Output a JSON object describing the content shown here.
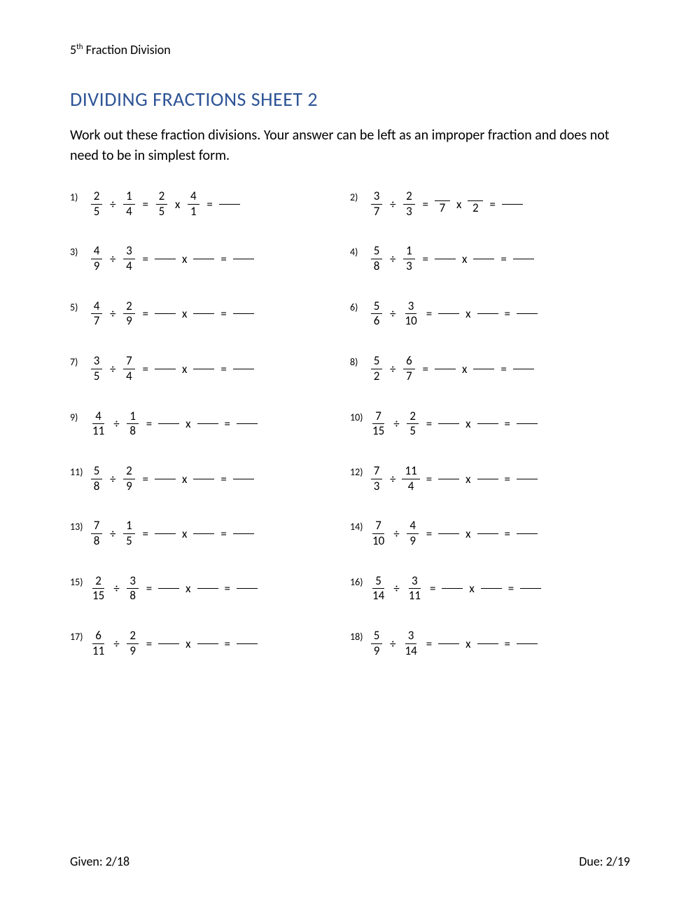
{
  "header": "5th Fraction Division",
  "header_sup": "th",
  "header_prefix": "5",
  "header_suffix": " Fraction Division",
  "title": "DIVIDING FRACTIONS SHEET 2",
  "instructions": "Work out these fraction divisions. Your answer can be left as an improper fraction and does not need to be in simplest form.",
  "footer_left": "Given: 2/18",
  "footer_right": "Due: 2/19",
  "problems": [
    {
      "n": "1)",
      "a": [
        "2",
        "5"
      ],
      "b": [
        "1",
        "4"
      ],
      "step": {
        "type": "filled",
        "c": [
          "2",
          "5"
        ],
        "d": [
          "4",
          "1"
        ]
      }
    },
    {
      "n": "2)",
      "a": [
        "3",
        "7"
      ],
      "b": [
        "2",
        "3"
      ],
      "step": {
        "type": "partial",
        "c_bot": "7",
        "d_bot": "2"
      }
    },
    {
      "n": "3)",
      "a": [
        "4",
        "9"
      ],
      "b": [
        "3",
        "4"
      ],
      "step": {
        "type": "blank"
      }
    },
    {
      "n": "4)",
      "a": [
        "5",
        "8"
      ],
      "b": [
        "1",
        "3"
      ],
      "step": {
        "type": "blank"
      }
    },
    {
      "n": "5)",
      "a": [
        "4",
        "7"
      ],
      "b": [
        "2",
        "9"
      ],
      "step": {
        "type": "blank"
      }
    },
    {
      "n": "6)",
      "a": [
        "5",
        "6"
      ],
      "b": [
        "3",
        "10"
      ],
      "step": {
        "type": "blank"
      }
    },
    {
      "n": "7)",
      "a": [
        "3",
        "5"
      ],
      "b": [
        "7",
        "4"
      ],
      "step": {
        "type": "blank"
      }
    },
    {
      "n": "8)",
      "a": [
        "5",
        "2"
      ],
      "b": [
        "6",
        "7"
      ],
      "step": {
        "type": "blank"
      }
    },
    {
      "n": "9)",
      "a": [
        "4",
        "11"
      ],
      "b": [
        "1",
        "8"
      ],
      "step": {
        "type": "blank"
      }
    },
    {
      "n": "10)",
      "a": [
        "7",
        "15"
      ],
      "b": [
        "2",
        "5"
      ],
      "step": {
        "type": "blank"
      }
    },
    {
      "n": "11)",
      "a": [
        "5",
        "8"
      ],
      "b": [
        "2",
        "9"
      ],
      "step": {
        "type": "blank"
      }
    },
    {
      "n": "12)",
      "a": [
        "7",
        "3"
      ],
      "b": [
        "11",
        "4"
      ],
      "step": {
        "type": "blank"
      }
    },
    {
      "n": "13)",
      "a": [
        "7",
        "8"
      ],
      "b": [
        "1",
        "5"
      ],
      "step": {
        "type": "blank"
      }
    },
    {
      "n": "14)",
      "a": [
        "7",
        "10"
      ],
      "b": [
        "4",
        "9"
      ],
      "step": {
        "type": "blank"
      }
    },
    {
      "n": "15)",
      "a": [
        "2",
        "15"
      ],
      "b": [
        "3",
        "8"
      ],
      "step": {
        "type": "blank"
      }
    },
    {
      "n": "16)",
      "a": [
        "5",
        "14"
      ],
      "b": [
        "3",
        "11"
      ],
      "step": {
        "type": "blank"
      }
    },
    {
      "n": "17)",
      "a": [
        "6",
        "11"
      ],
      "b": [
        "2",
        "9"
      ],
      "step": {
        "type": "blank"
      }
    },
    {
      "n": "18)",
      "a": [
        "5",
        "9"
      ],
      "b": [
        "3",
        "14"
      ],
      "step": {
        "type": "blank"
      }
    }
  ]
}
